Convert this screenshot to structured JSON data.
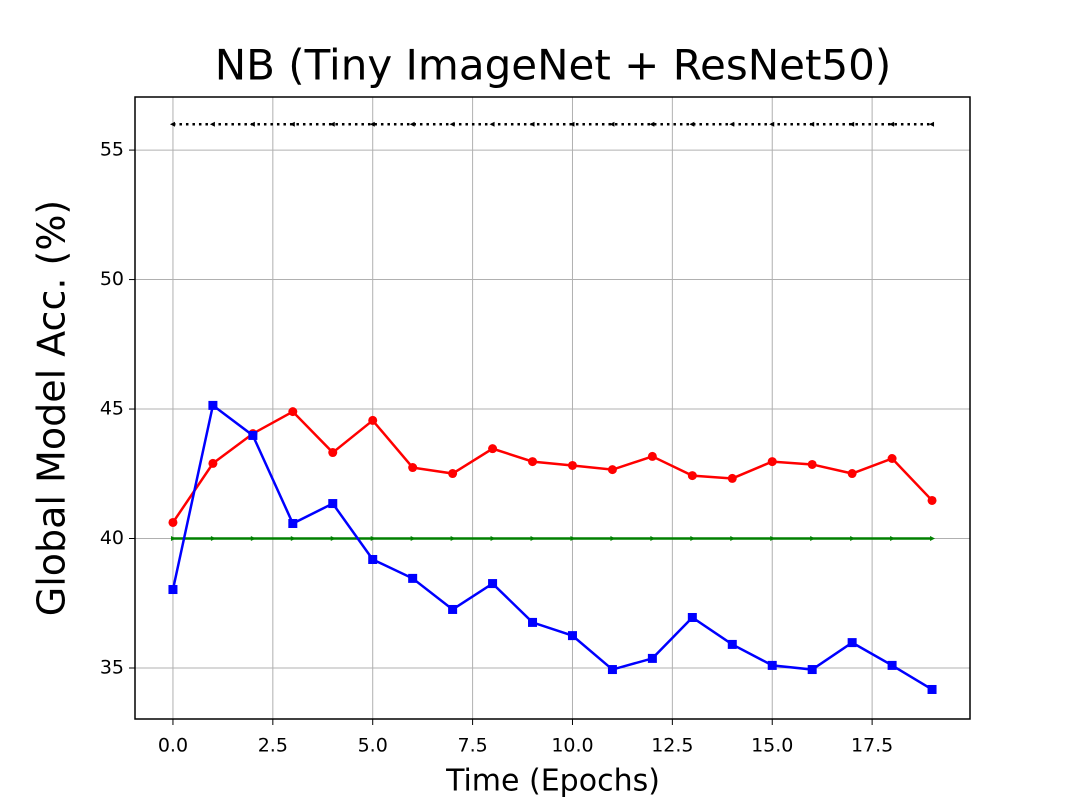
{
  "chart_data": {
    "type": "line",
    "title": "NB (Tiny ImageNet + ResNet50)",
    "x_label": "Time (Epochs)",
    "y_label": "Global Model Acc. (%)",
    "x": [
      0,
      1,
      2,
      3,
      4,
      5,
      6,
      7,
      8,
      9,
      10,
      11,
      12,
      13,
      14,
      15,
      16,
      17,
      18,
      19
    ],
    "series": [
      {
        "color": "#000000",
        "marker": "triangle-left",
        "dash": "dotted",
        "values": [
          56,
          56,
          56,
          56,
          56,
          56,
          56,
          56,
          56,
          56,
          56,
          56,
          56,
          56,
          56,
          56,
          56,
          56,
          56,
          56
        ]
      },
      {
        "color": "#008000",
        "marker": "triangle-right",
        "dash": "solid",
        "values": [
          40,
          40,
          40,
          40,
          40,
          40,
          40,
          40,
          40,
          40,
          40,
          40,
          40,
          40,
          40,
          40,
          40,
          40,
          40,
          40
        ]
      },
      {
        "color": "#ff0000",
        "marker": "circle",
        "dash": "solid",
        "values": [
          40.62,
          42.9,
          44.05,
          44.9,
          43.32,
          44.56,
          42.74,
          42.51,
          43.47,
          42.97,
          42.82,
          42.66,
          43.17,
          42.43,
          42.32,
          42.97,
          42.86,
          42.51,
          43.09,
          41.47
        ]
      },
      {
        "color": "#0000ff",
        "marker": "square",
        "dash": "solid",
        "values": [
          38.03,
          45.14,
          43.98,
          40.58,
          41.35,
          39.19,
          38.46,
          37.26,
          38.26,
          36.76,
          36.25,
          34.94,
          35.37,
          36.95,
          35.91,
          35.1,
          34.94,
          35.98,
          35.1,
          34.17
        ]
      }
    ],
    "xlim": [
      -0.95,
      19.95
    ],
    "ylim": [
      33.03,
      57.05
    ],
    "xticks": [
      {
        "value": 0,
        "label": "0.0"
      },
      2.5,
      {
        "value": 5,
        "label": "5.0"
      },
      7.5,
      {
        "value": 10,
        "label": "10.0"
      },
      12.5,
      {
        "value": 15,
        "label": "15.0"
      },
      17.5
    ],
    "yticks": [
      35,
      40,
      45,
      50,
      55
    ],
    "grid": true
  }
}
